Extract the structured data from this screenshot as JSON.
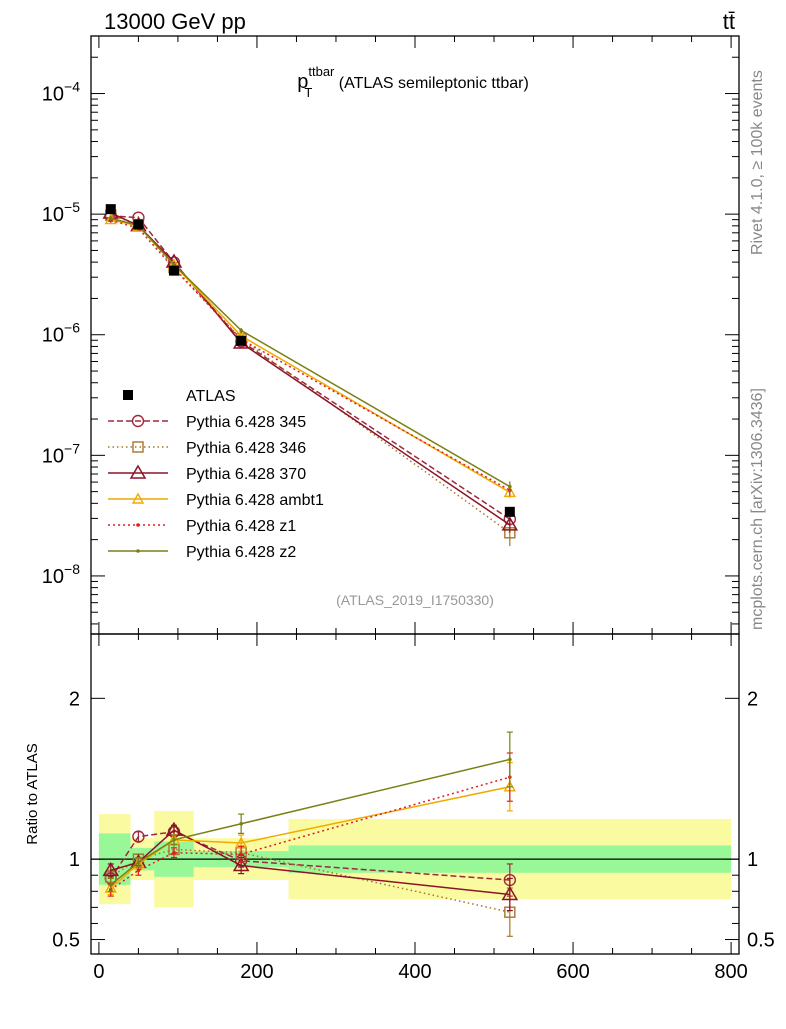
{
  "header": {
    "left": "13000 GeV pp",
    "right": "tt̄"
  },
  "side_labels": {
    "right_top": "Rivet 4.1.0, ≥ 100k events",
    "right_bottom": "mcplots.cern.ch [arXiv:1306.3436]"
  },
  "plot_title": {
    "main": "p",
    "sup": "ttbar",
    "sub": "T",
    "rest": " (ATLAS semileptonic ttbar)"
  },
  "analysis_id": "(ATLAS_2019_I1750330)",
  "ratio_ylabel": "Ratio to ATLAS",
  "colors": {
    "data": "#000000",
    "p345": "#a0283c",
    "p346": "#a8752c",
    "p370": "#8b1428",
    "ambt1": "#f0aa00",
    "z1": "#e01e1e",
    "z2": "#7a8014",
    "band_inner": "#98f898",
    "band_outer": "#fafaa0"
  },
  "chart_data": {
    "type": "line",
    "x": [
      15,
      50,
      95,
      180,
      520
    ],
    "x_edges": [
      [
        0,
        40
      ],
      [
        40,
        70
      ],
      [
        70,
        120
      ],
      [
        120,
        240
      ],
      [
        240,
        800
      ]
    ],
    "xlim": [
      -10,
      810
    ],
    "xticks": [
      0,
      200,
      400,
      600,
      800
    ],
    "main": {
      "yscale": "log",
      "ylim": [
        3.3e-09,
        0.0003
      ],
      "yticks": [
        {
          "v": 1e-08,
          "b": "10",
          "e": "−8"
        },
        {
          "v": 1e-07,
          "b": "10",
          "e": "−7"
        },
        {
          "v": 1e-06,
          "b": "10",
          "e": "−6"
        },
        {
          "v": 1e-05,
          "b": "10",
          "e": "−5"
        },
        {
          "v": 0.0001,
          "b": "10",
          "e": "−4"
        }
      ]
    },
    "ratio": {
      "ylim": [
        0.41,
        2.4
      ],
      "yticks": [
        0.5,
        1,
        2
      ]
    },
    "data": {
      "name": "ATLAS",
      "values": [
        1.1e-05,
        8.2e-06,
        3.4e-06,
        8.9e-07,
        3.4e-08
      ],
      "band_inner": [
        0.16,
        0.07,
        0.11,
        0.05,
        0.085
      ],
      "band_outer": [
        0.28,
        0.13,
        0.3,
        0.13,
        0.25
      ]
    },
    "series": [
      {
        "name": "Pythia 6.428 345",
        "key": "p345",
        "marker": "circle",
        "dash": "6,3",
        "ratios": [
          0.88,
          1.14,
          1.17,
          0.99,
          0.87
        ],
        "err": [
          0.04,
          0.03,
          0.03,
          0.04,
          0.1
        ]
      },
      {
        "name": "Pythia 6.428 346",
        "key": "p346",
        "marker": "square",
        "dash": "1.5,3",
        "ratios": [
          0.89,
          1.0,
          1.06,
          1.04,
          0.67
        ],
        "err": [
          0.04,
          0.03,
          0.03,
          0.04,
          0.15
        ]
      },
      {
        "name": "Pythia 6.428 370",
        "key": "p370",
        "marker": "triangle",
        "dash": "",
        "ratios": [
          0.93,
          0.98,
          1.18,
          0.96,
          0.78
        ],
        "err": [
          0.04,
          0.03,
          0.03,
          0.05,
          0.1
        ]
      },
      {
        "name": "Pythia 6.428 ambt1",
        "key": "ambt1",
        "marker": "triangle-small",
        "dash": "",
        "ratios": [
          0.82,
          0.97,
          1.12,
          1.1,
          1.45
        ],
        "err": [
          0.04,
          0.03,
          0.03,
          0.05,
          0.15
        ]
      },
      {
        "name": "Pythia 6.428 z1",
        "key": "z1",
        "marker": "dot",
        "dash": "2,3",
        "ratios": [
          0.81,
          0.93,
          1.04,
          1.03,
          1.51
        ],
        "err": [
          0.04,
          0.03,
          0.03,
          0.05,
          0.15
        ]
      },
      {
        "name": "Pythia 6.428 z2",
        "key": "z2",
        "marker": "dot",
        "dash": "",
        "ratios": [
          0.84,
          0.98,
          1.12,
          1.22,
          1.62
        ],
        "err": [
          0.04,
          0.03,
          0.03,
          0.06,
          0.17
        ]
      }
    ]
  }
}
